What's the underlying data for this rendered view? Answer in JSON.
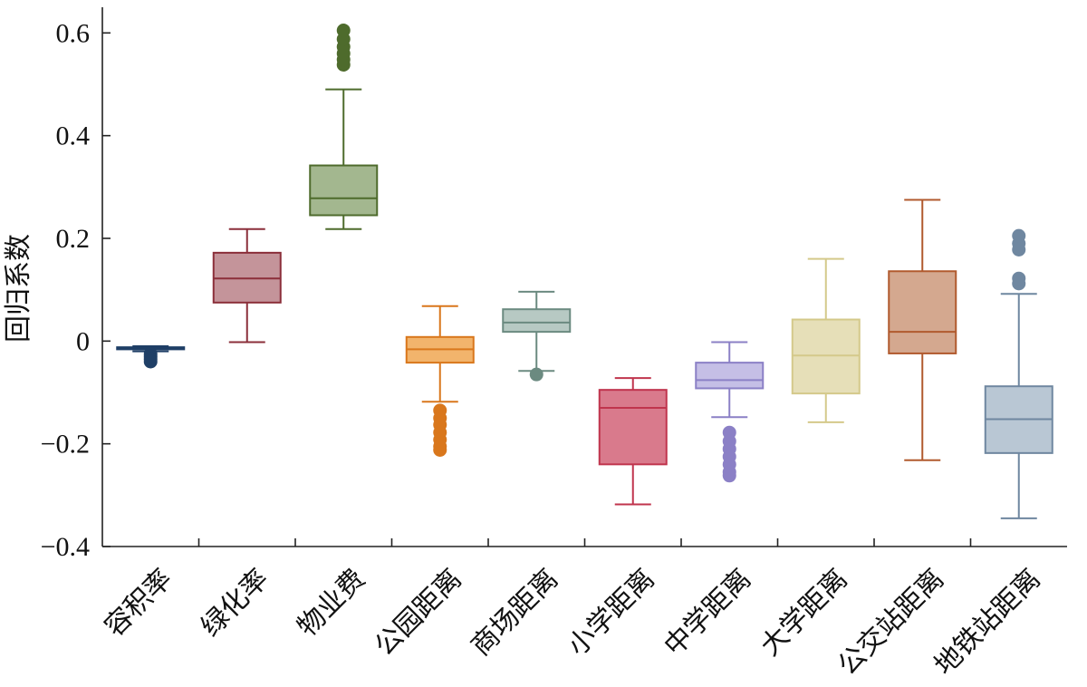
{
  "chart_data": {
    "type": "box",
    "title": "",
    "xlabel": "",
    "ylabel": "回归系数",
    "ylim": [
      -0.4,
      0.65
    ],
    "yticks": [
      0.6,
      0.4,
      0.2,
      0,
      -0.2,
      -0.4
    ],
    "ytick_labels": [
      "0.6",
      "0.4",
      "0.2",
      "0",
      "−0.2",
      "−0.4"
    ],
    "grid": false,
    "series": [
      {
        "category": "容积率",
        "whisker_low": -0.02,
        "q1": -0.016,
        "median": -0.014,
        "q3": -0.012,
        "whisker_high": -0.01,
        "outliers": [
          -0.025,
          -0.03,
          -0.035,
          -0.04
        ],
        "line_color": "#1f3f66",
        "fill_color": "#2a4f80"
      },
      {
        "category": "绿化率",
        "whisker_low": -0.002,
        "q1": 0.075,
        "median": 0.122,
        "q3": 0.172,
        "whisker_high": 0.218,
        "outliers": [],
        "line_color": "#8b2f3a",
        "fill_color": "#c4949a"
      },
      {
        "category": "物业费",
        "whisker_low": 0.218,
        "q1": 0.245,
        "median": 0.278,
        "q3": 0.342,
        "whisker_high": 0.49,
        "outliers": [
          0.538,
          0.548,
          0.56,
          0.573,
          0.588,
          0.605
        ],
        "line_color": "#4e6b2c",
        "fill_color": "#a3b78f"
      },
      {
        "category": "公园距离",
        "whisker_low": -0.118,
        "q1": -0.042,
        "median": -0.016,
        "q3": 0.008,
        "whisker_high": 0.068,
        "outliers": [
          -0.135,
          -0.15,
          -0.163,
          -0.178,
          -0.192,
          -0.205,
          -0.212
        ],
        "line_color": "#d9771c",
        "fill_color": "#f2b46c"
      },
      {
        "category": "商场距离",
        "whisker_low": -0.058,
        "q1": 0.018,
        "median": 0.036,
        "q3": 0.062,
        "whisker_high": 0.096,
        "outliers": [
          -0.065
        ],
        "line_color": "#6b8a80",
        "fill_color": "#b7c9c3"
      },
      {
        "category": "小学距离",
        "whisker_low": -0.318,
        "q1": -0.24,
        "median": -0.13,
        "q3": -0.095,
        "whisker_high": -0.072,
        "outliers": [],
        "line_color": "#c0344d",
        "fill_color": "#d97a8c"
      },
      {
        "category": "中学距离",
        "whisker_low": -0.148,
        "q1": -0.092,
        "median": -0.076,
        "q3": -0.042,
        "whisker_high": -0.002,
        "outliers": [
          -0.178,
          -0.195,
          -0.21,
          -0.225,
          -0.24,
          -0.255,
          -0.262
        ],
        "line_color": "#8b80c6",
        "fill_color": "#c5bfe6"
      },
      {
        "category": "大学距离",
        "whisker_low": -0.158,
        "q1": -0.102,
        "median": -0.028,
        "q3": 0.042,
        "whisker_high": 0.16,
        "outliers": [],
        "line_color": "#d4c98a",
        "fill_color": "#e6dfb8"
      },
      {
        "category": "公交站距离",
        "whisker_low": -0.232,
        "q1": -0.024,
        "median": 0.018,
        "q3": 0.136,
        "whisker_high": 0.275,
        "outliers": [],
        "line_color": "#b15a2e",
        "fill_color": "#d4a88f"
      },
      {
        "category": "地铁站距离",
        "whisker_low": -0.345,
        "q1": -0.218,
        "median": -0.152,
        "q3": -0.088,
        "whisker_high": 0.092,
        "outliers": [
          0.112,
          0.122,
          0.178,
          0.19,
          0.205
        ],
        "line_color": "#6f87a0",
        "fill_color": "#b9c7d4"
      }
    ]
  }
}
